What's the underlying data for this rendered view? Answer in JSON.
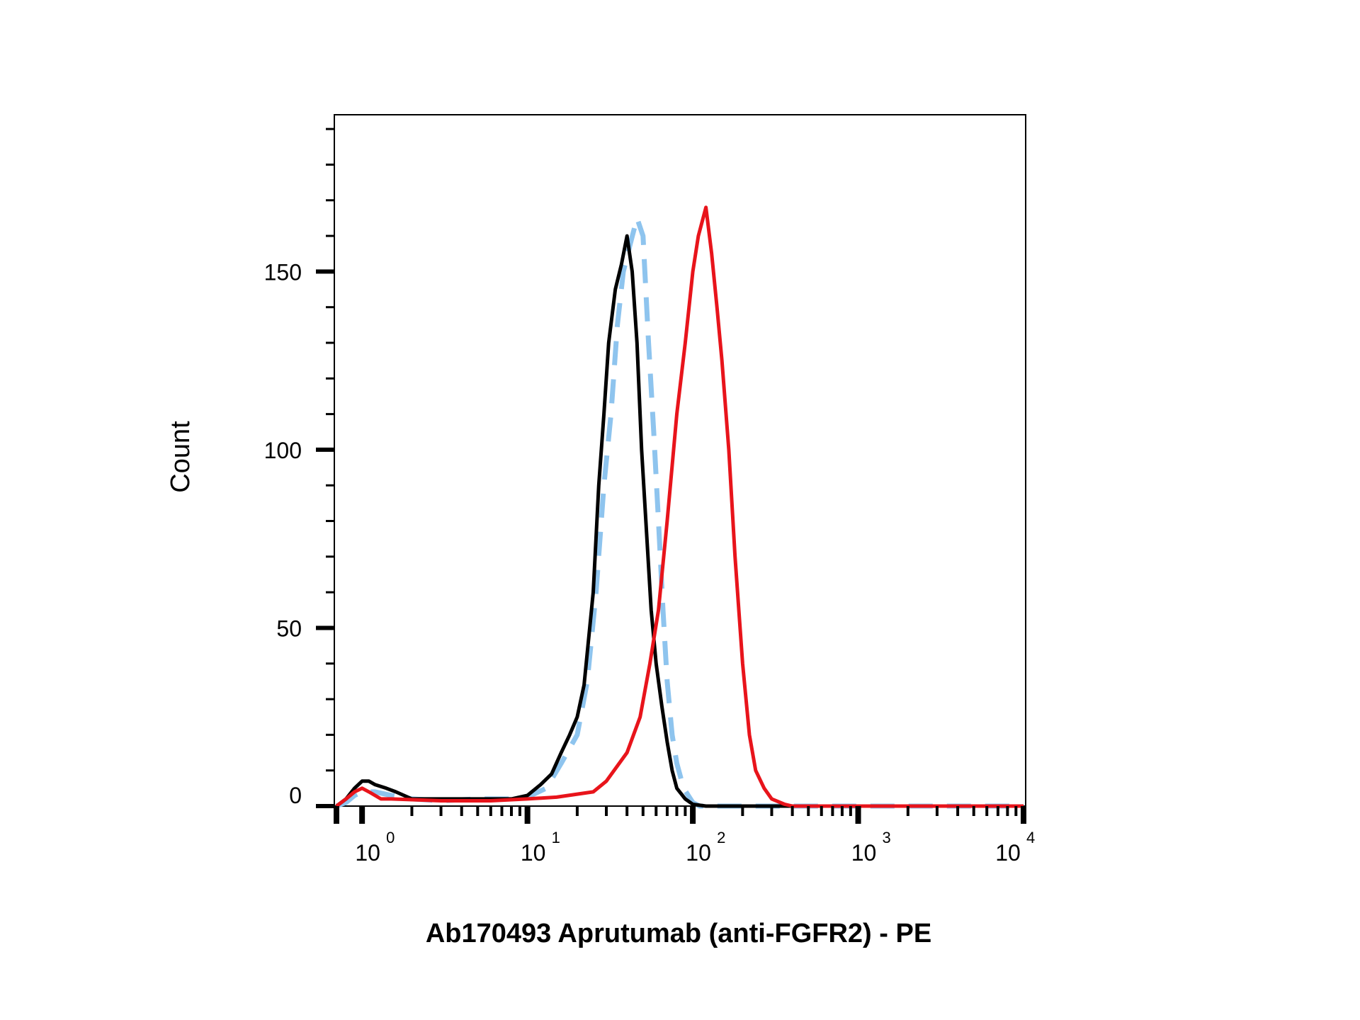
{
  "chart_data": {
    "type": "line",
    "title": "",
    "xlabel": "Ab170493 Aprutumab (anti-FGFR2) - PE",
    "ylabel": "Count",
    "x_scale": "log",
    "xlim": [
      0.7,
      10000
    ],
    "ylim": [
      0,
      194
    ],
    "y_ticks": [
      0,
      50,
      100,
      150
    ],
    "x_ticks": [
      {
        "value": 1,
        "base": "10",
        "exp": "0"
      },
      {
        "value": 10,
        "base": "10",
        "exp": "1"
      },
      {
        "value": 100,
        "base": "10",
        "exp": "2"
      },
      {
        "value": 1000,
        "base": "10",
        "exp": "3"
      },
      {
        "value": 10000,
        "base": "10",
        "exp": "4"
      }
    ],
    "grid": false,
    "legend": "none",
    "series": [
      {
        "color": "#000000",
        "dash": "solid",
        "points": [
          [
            0.7,
            0
          ],
          [
            0.8,
            2
          ],
          [
            0.9,
            5
          ],
          [
            1.0,
            7
          ],
          [
            1.1,
            7
          ],
          [
            1.2,
            6
          ],
          [
            1.4,
            5
          ],
          [
            1.6,
            4
          ],
          [
            2.0,
            2
          ],
          [
            3.0,
            2
          ],
          [
            5.0,
            2
          ],
          [
            8.0,
            2
          ],
          [
            10.0,
            3
          ],
          [
            12.0,
            6
          ],
          [
            14.0,
            9
          ],
          [
            16.0,
            15
          ],
          [
            18.0,
            20
          ],
          [
            20.0,
            25
          ],
          [
            22.0,
            34
          ],
          [
            25.0,
            60
          ],
          [
            27.0,
            90
          ],
          [
            29.0,
            110
          ],
          [
            31.0,
            130
          ],
          [
            34.0,
            145
          ],
          [
            37.0,
            152
          ],
          [
            40.0,
            160
          ],
          [
            43.0,
            150
          ],
          [
            46.0,
            130
          ],
          [
            49.0,
            100
          ],
          [
            52.0,
            80
          ],
          [
            56.0,
            55
          ],
          [
            60.0,
            40
          ],
          [
            65.0,
            28
          ],
          [
            70.0,
            18
          ],
          [
            75.0,
            10
          ],
          [
            80.0,
            5
          ],
          [
            90.0,
            2
          ],
          [
            100.0,
            0.5
          ],
          [
            120.0,
            0
          ],
          [
            10000,
            0
          ]
        ]
      },
      {
        "color": "#8ec4ee",
        "dash": "dashed",
        "points": [
          [
            0.7,
            0
          ],
          [
            0.8,
            1
          ],
          [
            0.9,
            3
          ],
          [
            1.0,
            4
          ],
          [
            1.2,
            4
          ],
          [
            1.5,
            3
          ],
          [
            2.0,
            2
          ],
          [
            3.0,
            1.5
          ],
          [
            5.0,
            2
          ],
          [
            8.0,
            2
          ],
          [
            10.0,
            2.5
          ],
          [
            13.0,
            5
          ],
          [
            16.0,
            12
          ],
          [
            20.0,
            20
          ],
          [
            23.0,
            35
          ],
          [
            26.0,
            60
          ],
          [
            29.0,
            90
          ],
          [
            32.0,
            110
          ],
          [
            35.0,
            135
          ],
          [
            38.0,
            150
          ],
          [
            42.0,
            158
          ],
          [
            46.0,
            165
          ],
          [
            50.0,
            160
          ],
          [
            54.0,
            130
          ],
          [
            58.0,
            105
          ],
          [
            62.0,
            80
          ],
          [
            66.0,
            55
          ],
          [
            70.0,
            35
          ],
          [
            75.0,
            20
          ],
          [
            80.0,
            12
          ],
          [
            88.0,
            5
          ],
          [
            100.0,
            1
          ],
          [
            110.0,
            0
          ],
          [
            10000,
            0
          ]
        ]
      },
      {
        "color": "#e8141b",
        "dash": "solid",
        "points": [
          [
            0.7,
            0
          ],
          [
            0.8,
            2
          ],
          [
            0.9,
            4
          ],
          [
            1.0,
            5
          ],
          [
            1.1,
            4
          ],
          [
            1.3,
            2
          ],
          [
            1.5,
            2
          ],
          [
            3.0,
            1.5
          ],
          [
            6.0,
            1.5
          ],
          [
            10.0,
            2
          ],
          [
            15.0,
            2.5
          ],
          [
            25.0,
            4
          ],
          [
            30.0,
            7
          ],
          [
            40.0,
            15
          ],
          [
            48.0,
            25
          ],
          [
            55.0,
            40
          ],
          [
            62.0,
            55
          ],
          [
            70.0,
            80
          ],
          [
            80.0,
            110
          ],
          [
            90.0,
            130
          ],
          [
            100.0,
            150
          ],
          [
            108.0,
            160
          ],
          [
            120.0,
            168
          ],
          [
            130.0,
            155
          ],
          [
            140.0,
            140
          ],
          [
            150.0,
            125
          ],
          [
            165.0,
            100
          ],
          [
            180.0,
            70
          ],
          [
            200.0,
            40
          ],
          [
            220.0,
            20
          ],
          [
            240.0,
            10
          ],
          [
            270.0,
            5
          ],
          [
            300.0,
            2
          ],
          [
            360.0,
            0.5
          ],
          [
            400.0,
            0
          ],
          [
            10000,
            0
          ]
        ]
      }
    ]
  }
}
